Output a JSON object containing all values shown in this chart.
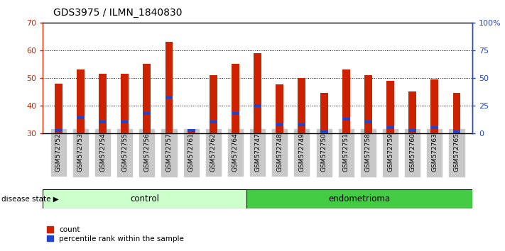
{
  "title": "GDS3975 / ILMN_1840830",
  "samples": [
    "GSM572752",
    "GSM572753",
    "GSM572754",
    "GSM572755",
    "GSM572756",
    "GSM572757",
    "GSM572761",
    "GSM572762",
    "GSM572764",
    "GSM572747",
    "GSM572748",
    "GSM572749",
    "GSM572750",
    "GSM572751",
    "GSM572758",
    "GSM572759",
    "GSM572760",
    "GSM572763",
    "GSM572765"
  ],
  "count_values": [
    48.0,
    53.0,
    51.5,
    51.5,
    55.0,
    63.0,
    31.5,
    51.0,
    55.0,
    59.0,
    47.5,
    50.0,
    44.5,
    53.0,
    51.0,
    49.0,
    45.0,
    49.5,
    44.5
  ],
  "percentile_values": [
    31.0,
    35.5,
    34.0,
    34.0,
    37.0,
    43.0,
    31.0,
    34.0,
    37.0,
    40.0,
    33.0,
    33.0,
    30.5,
    35.0,
    34.0,
    32.0,
    31.0,
    32.0,
    30.5
  ],
  "ymin": 30,
  "ymax": 70,
  "yticks_left": [
    30,
    40,
    50,
    60,
    70
  ],
  "right_ytick_vals": [
    0,
    25,
    50,
    75,
    100
  ],
  "right_yticklabels": [
    "0",
    "25",
    "50",
    "75",
    "100%"
  ],
  "bar_color": "#cc2200",
  "percentile_color": "#2244cc",
  "bar_width": 0.35,
  "n_control": 9,
  "group_labels": [
    "control",
    "endometrioma"
  ],
  "control_color": "#ccffcc",
  "endometrioma_color": "#44cc44",
  "tick_bg_color": "#c8c8c8",
  "legend_count_label": "count",
  "legend_percentile_label": "percentile rank within the sample",
  "disease_state_label": "disease state"
}
